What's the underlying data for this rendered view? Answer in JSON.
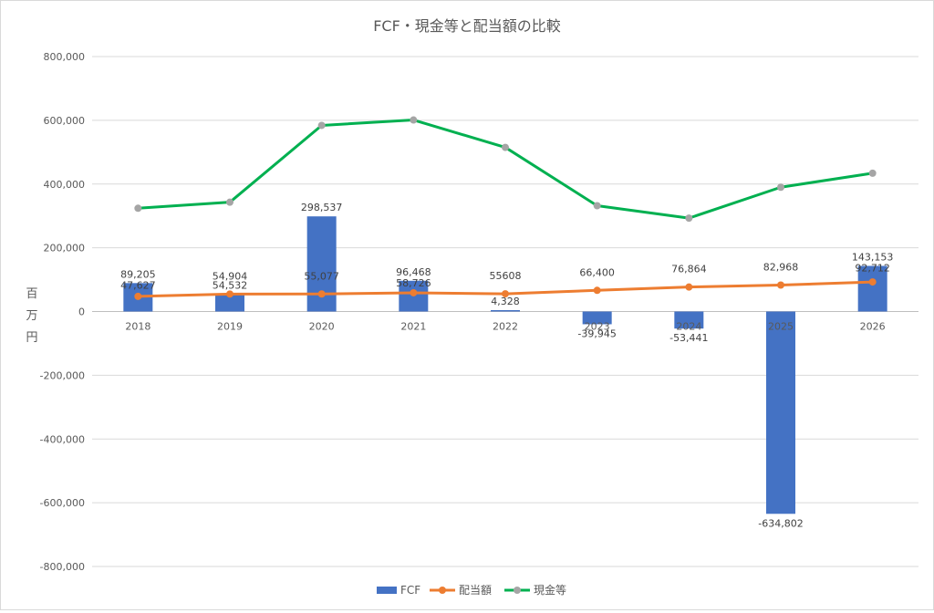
{
  "chart_data": {
    "type": "bar+line",
    "title": "FCF・現金等と配当額の比較",
    "ylabel": "百万円",
    "ylim": [
      -800000,
      800000
    ],
    "ytick_step": 200000,
    "y_tick_labels": [
      "800,000",
      "600,000",
      "400,000",
      "200,000",
      "0",
      "-200,000",
      "-400,000",
      "-600,000",
      "-800,000"
    ],
    "grid": true,
    "legend_position": "bottom",
    "categories": [
      "2018",
      "2019",
      "2020",
      "2021",
      "2022",
      "2023",
      "2024",
      "2025",
      "2026"
    ],
    "series": [
      {
        "name": "FCF",
        "type": "bar",
        "color": "#4472c4",
        "values": [
          89205,
          54532,
          298537,
          96468,
          4328,
          -39945,
          -53441,
          -634802,
          143153
        ],
        "labels": [
          "89,205",
          "54,532",
          "298,537",
          "96,468",
          "4,328",
          "-39,945",
          "-53,441",
          "-634,802",
          "143,153"
        ]
      },
      {
        "name": "配当額",
        "type": "line",
        "color": "#ed7d31",
        "values": [
          47627,
          54904,
          55077,
          58726,
          55608,
          66400,
          76864,
          82968,
          92712
        ],
        "labels": [
          "47,627",
          "54,904",
          "55,077",
          "58,726",
          "55608",
          "66,400",
          "76,864",
          "82,968",
          "92,712"
        ]
      },
      {
        "name": "現金等",
        "type": "line",
        "color": "#00b050",
        "marker_color": "#a5a5a5",
        "values": [
          324000,
          343000,
          584000,
          601000,
          515000,
          332000,
          293000,
          390000,
          434000
        ]
      }
    ]
  }
}
